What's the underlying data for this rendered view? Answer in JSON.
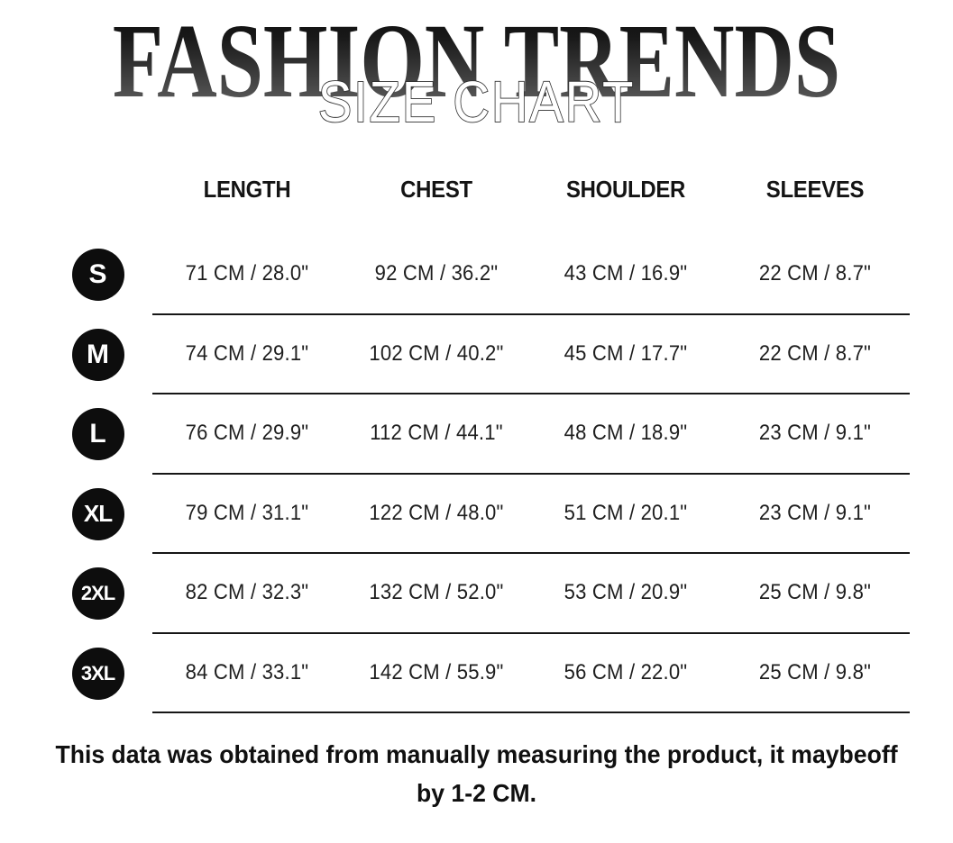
{
  "header": {
    "title": "FASHION TRENDS",
    "subtitle": "SIZE CHART"
  },
  "table": {
    "columns": [
      "LENGTH",
      "CHEST",
      "SHOULDER",
      "SLEEVES"
    ],
    "rows": [
      {
        "size": "S",
        "cells": [
          "71 CM / 28.0\"",
          "92 CM / 36.2\"",
          "43 CM / 16.9\"",
          "22 CM / 8.7\""
        ]
      },
      {
        "size": "M",
        "cells": [
          "74 CM / 29.1\"",
          "102 CM / 40.2\"",
          "45 CM / 17.7\"",
          "22 CM / 8.7\""
        ]
      },
      {
        "size": "L",
        "cells": [
          "76 CM / 29.9\"",
          "112 CM / 44.1\"",
          "48 CM / 18.9\"",
          "23 CM / 9.1\""
        ]
      },
      {
        "size": "XL",
        "cells": [
          "79 CM / 31.1\"",
          "122 CM / 48.0\"",
          "51 CM / 20.1\"",
          "23 CM / 9.1\""
        ]
      },
      {
        "size": "2XL",
        "cells": [
          "82 CM / 32.3\"",
          "132 CM / 52.0\"",
          "53 CM / 20.9\"",
          "25 CM / 9.8\""
        ]
      },
      {
        "size": "3XL",
        "cells": [
          "84 CM / 33.1\"",
          "142 CM / 55.9\"",
          "56 CM / 22.0\"",
          "25 CM / 9.8\""
        ]
      }
    ]
  },
  "footer": {
    "line1": "This data was obtained from manually measuring the product, it maybeoff",
    "line2": "by 1-2 CM."
  },
  "colors": {
    "background": "#ffffff",
    "badge_bg": "#0d0d0d",
    "badge_text": "#ffffff",
    "separator_line": "#161616",
    "title_gradient_top": "#0a0a0a",
    "title_gradient_bottom": "#6f6f6f",
    "subtitle_fill": "#ffffff",
    "subtitle_outline": "#2e2e2e",
    "body_text": "#1e1e1e"
  }
}
